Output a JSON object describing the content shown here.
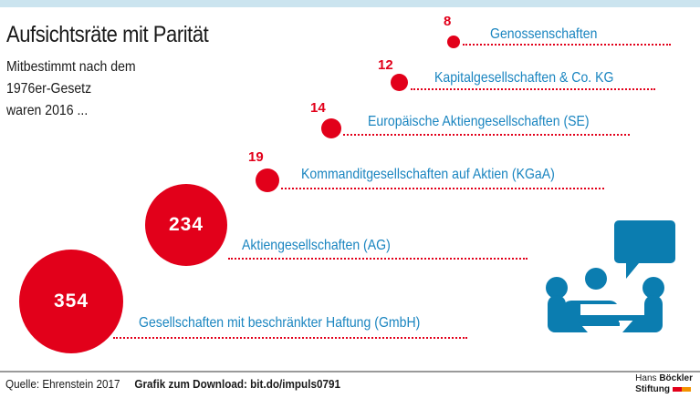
{
  "header": {
    "title": "Aufsichtsräte mit Parität",
    "subtitle_lines": [
      "Mitbestimmt nach dem",
      "1976er-Gesetz",
      "waren 2016 ..."
    ]
  },
  "chart_data": {
    "type": "bubble",
    "title": "Aufsichtsräte mit Parität",
    "subtitle": "Mitbestimmt nach dem 1976er-Gesetz waren 2016 ...",
    "categories": [
      "Genossenschaften",
      "Kapitalgesellschaften & Co. KG",
      "Europäische Aktiengesellschaften (SE)",
      "Kommanditgesellschaften auf Aktien (KGaA)",
      "Aktiengesellschaften (AG)",
      "Gesellschaften mit beschränkter Haftung (GmbH)"
    ],
    "values": [
      8,
      12,
      14,
      19,
      234,
      354
    ],
    "value_labels": [
      "8",
      "12",
      "14",
      "19",
      "234",
      "354"
    ],
    "color": "#e2001a",
    "label_color": "#1a85c0"
  },
  "icon": {
    "name": "meeting-people-speech-bubble-icon",
    "color": "#0b7db0"
  },
  "footer": {
    "source": "Quelle: Ehrenstein 2017",
    "download": "Grafik zum Download: bit.do/impuls0791",
    "logo_line1_a": "Hans",
    "logo_line1_b": "Böckler",
    "logo_line2": "Stiftung"
  }
}
